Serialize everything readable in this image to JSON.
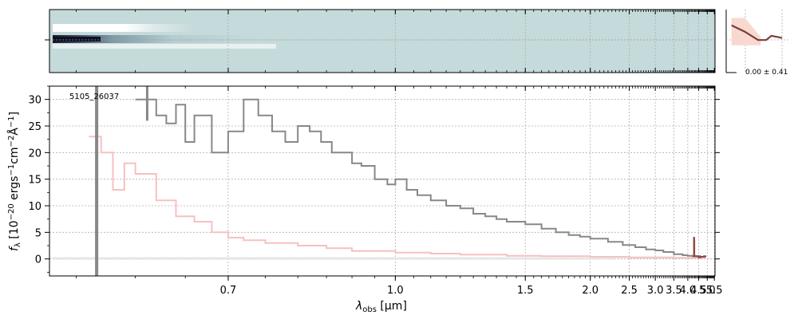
{
  "figure": {
    "object_id": "5105_26037",
    "profile_label": "0.00 ± 0.41",
    "xlabel_main": "λ",
    "xlabel_sub": "obs",
    "xlabel_unit": " [μm]",
    "ylabel": "f",
    "ylabel_sub": "λ",
    "ylabel_rest": " [10",
    "ylabel_exp1": "−20",
    "ylabel_mid": " ergs",
    "ylabel_exp2": "−1",
    "ylabel_cm": "cm",
    "ylabel_exp3": "−2",
    "ylabel_ang": "Å",
    "ylabel_exp4": "−1",
    "ylabel_close": "]"
  },
  "colors": {
    "spectrum": "#888888",
    "error": "#f8c0c0",
    "line_highlight": "#8b4a44",
    "image_bg": "#c4dadb",
    "profile_line": "#7a3f38",
    "profile_fill": "#f9d8d0",
    "grid": "#b0b0b0"
  },
  "chart_data": {
    "type": "line",
    "x_scale": "reciprocal",
    "xlim": [
      0.53,
      5.55
    ],
    "ylim": [
      -3.2,
      32.5
    ],
    "xticks": [
      {
        "value": 0.7,
        "label": "0.7"
      },
      {
        "value": 1.0,
        "label": "1.0"
      },
      {
        "value": 1.5,
        "label": "1.5"
      },
      {
        "value": 2.0,
        "label": "2.0"
      },
      {
        "value": 2.5,
        "label": "2.5"
      },
      {
        "value": 3.0,
        "label": "3.0"
      },
      {
        "value": 3.5,
        "label": "3.5"
      },
      {
        "value": 4.0,
        "label": "4.0"
      },
      {
        "value": 4.5,
        "label": "4.5"
      },
      {
        "value": 5.0,
        "label": "5.0"
      },
      {
        "value": 5.5,
        "label": "5.5"
      }
    ],
    "yticks": [
      0,
      5,
      10,
      15,
      20,
      25,
      30
    ],
    "grid": true,
    "series": [
      {
        "role": "flux",
        "x": [
          0.6,
          0.62,
          0.63,
          0.64,
          0.65,
          0.66,
          0.68,
          0.7,
          0.72,
          0.74,
          0.76,
          0.78,
          0.8,
          0.82,
          0.84,
          0.86,
          0.88,
          0.9,
          0.92,
          0.95,
          0.98,
          1.0,
          1.03,
          1.06,
          1.1,
          1.15,
          1.2,
          1.25,
          1.3,
          1.35,
          1.4,
          1.5,
          1.6,
          1.7,
          1.8,
          1.9,
          2.0,
          2.2,
          2.4,
          2.6,
          2.8,
          3.0,
          3.2,
          3.5,
          3.8,
          4.0,
          4.2,
          4.4,
          4.6,
          4.8,
          4.88
        ],
        "y": [
          30,
          27,
          25.5,
          29,
          22,
          27,
          20,
          24,
          30,
          27,
          24,
          22,
          25,
          24,
          22,
          20,
          20,
          18,
          17.5,
          15,
          14,
          15,
          13,
          12,
          11,
          10,
          9.5,
          8.5,
          8,
          7.5,
          7,
          6.5,
          5.7,
          5,
          4.5,
          4.2,
          3.8,
          3.2,
          2.6,
          2.2,
          1.8,
          1.6,
          1.3,
          0.9,
          0.7,
          0.6,
          0.5,
          0.5,
          0.4,
          0.4,
          0.4
        ]
      },
      {
        "role": "error",
        "x": [
          0.56,
          0.57,
          0.58,
          0.59,
          0.6,
          0.62,
          0.64,
          0.66,
          0.68,
          0.7,
          0.72,
          0.75,
          0.8,
          0.85,
          0.9,
          1.0,
          1.1,
          1.2,
          1.4,
          1.6,
          2.0,
          2.5,
          3.0,
          3.5,
          4.0,
          4.5,
          4.88
        ],
        "y": [
          23,
          20,
          13,
          18,
          16,
          11,
          8,
          7,
          5,
          4,
          3.5,
          3,
          2.5,
          2,
          1.5,
          1.2,
          1.0,
          0.8,
          0.6,
          0.5,
          0.4,
          0.3,
          0.3,
          0.2,
          0.2,
          0.2,
          0.2
        ]
      },
      {
        "role": "emission-line",
        "x": [
          4.22,
          4.26,
          4.27,
          4.28,
          4.29,
          4.3,
          4.34,
          4.4,
          4.5,
          4.6,
          4.7,
          4.8,
          4.88
        ],
        "y": [
          0.5,
          0.5,
          4,
          3.5,
          0.6,
          0.5,
          0.5,
          0.5,
          0.3,
          0.4,
          0.4,
          0.5,
          0.3
        ]
      }
    ],
    "profile": {
      "xlim": [
        -1.2,
        1.2
      ],
      "ylim": [
        -3,
        3
      ],
      "x": [
        -1.0,
        -0.5,
        0.0,
        0.3,
        0.5,
        0.7,
        0.9
      ],
      "y": [
        1.5,
        0.9,
        0.1,
        0.1,
        0.5,
        0.4,
        0.3
      ]
    }
  }
}
